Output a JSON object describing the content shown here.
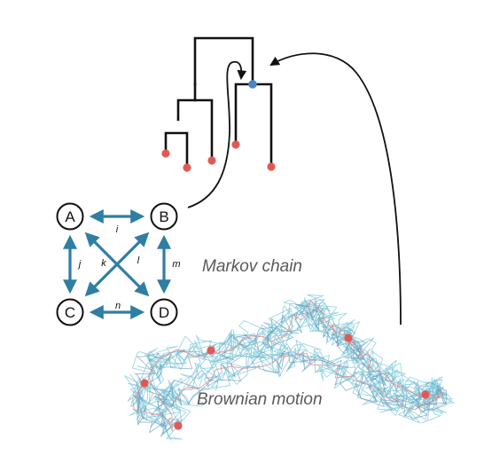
{
  "markov_chain": {
    "caption": "Markov chain",
    "states": [
      "A",
      "B",
      "C",
      "D"
    ],
    "transitions": [
      {
        "from": "A",
        "to": "B",
        "label": "i"
      },
      {
        "from": "A",
        "to": "C",
        "label": "j"
      },
      {
        "from": "A",
        "to": "D",
        "label": "k"
      },
      {
        "from": "B",
        "to": "C",
        "label": "l"
      },
      {
        "from": "B",
        "to": "D",
        "label": "m"
      },
      {
        "from": "C",
        "to": "D",
        "label": "n"
      }
    ]
  },
  "brownian_motion": {
    "caption": "Brownian motion"
  },
  "colors": {
    "tree": "#111111",
    "tip": "#e05a55",
    "internal_node": "#4a86c5",
    "markov_arrow": "#2f7ea3",
    "caption": "#5a5a5a",
    "path_light": "#7cc7d9",
    "path_dark": "#5b8fb0",
    "path_red": "#d98a8a"
  }
}
